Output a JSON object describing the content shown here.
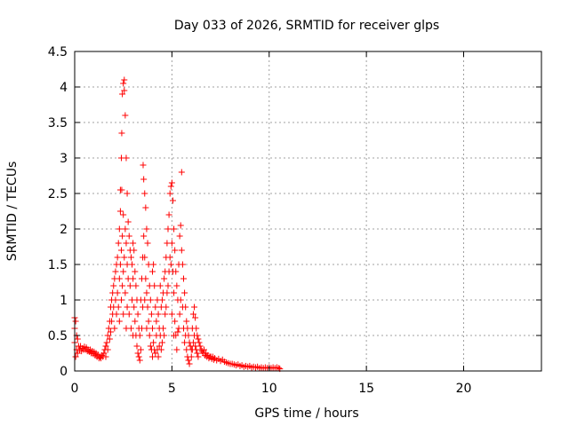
{
  "chart_data": {
    "type": "scatter",
    "title": "Day 033 of 2026, SRMTID for receiver glps",
    "xlabel": "GPS time / hours",
    "ylabel": "SRMTID / TECUs",
    "xlim": [
      0,
      24
    ],
    "ylim": [
      0,
      4.5
    ],
    "grid": true,
    "marker": "+",
    "color": "#ff0000",
    "x_ticks": [
      0,
      5,
      10,
      15,
      20
    ],
    "y_ticks": [
      0,
      0.5,
      1,
      1.5,
      2,
      2.5,
      3,
      3.5,
      4,
      4.5
    ],
    "x_tick_labels": [
      "0",
      "5",
      "10",
      "15",
      "20"
    ],
    "y_tick_labels": [
      "0",
      "0.5",
      "1",
      "1.5",
      "2",
      "2.5",
      "3",
      "3.5",
      "4",
      "4.5"
    ],
    "series": [
      {
        "name": "SRMTID",
        "points": [
          [
            0.0,
            0.75
          ],
          [
            0.0,
            0.6
          ],
          [
            0.0,
            0.4
          ],
          [
            0.05,
            0.7
          ],
          [
            0.05,
            0.2
          ],
          [
            0.1,
            0.5
          ],
          [
            0.1,
            0.3
          ],
          [
            0.15,
            0.45
          ],
          [
            0.15,
            0.25
          ],
          [
            0.2,
            0.35
          ],
          [
            0.25,
            0.3
          ],
          [
            0.3,
            0.35
          ],
          [
            0.35,
            0.28
          ],
          [
            0.4,
            0.32
          ],
          [
            0.45,
            0.3
          ],
          [
            0.5,
            0.34
          ],
          [
            0.55,
            0.3
          ],
          [
            0.6,
            0.33
          ],
          [
            0.65,
            0.28
          ],
          [
            0.7,
            0.3
          ],
          [
            0.75,
            0.27
          ],
          [
            0.8,
            0.3
          ],
          [
            0.85,
            0.25
          ],
          [
            0.9,
            0.28
          ],
          [
            0.95,
            0.24
          ],
          [
            1.0,
            0.27
          ],
          [
            1.05,
            0.22
          ],
          [
            1.1,
            0.25
          ],
          [
            1.15,
            0.2
          ],
          [
            1.2,
            0.23
          ],
          [
            1.25,
            0.18
          ],
          [
            1.3,
            0.2
          ],
          [
            1.35,
            0.18
          ],
          [
            1.4,
            0.22
          ],
          [
            1.45,
            0.2
          ],
          [
            1.5,
            0.25
          ],
          [
            1.55,
            0.3
          ],
          [
            1.6,
            0.35
          ],
          [
            1.6,
            0.2
          ],
          [
            1.65,
            0.4
          ],
          [
            1.7,
            0.5
          ],
          [
            1.7,
            0.3
          ],
          [
            1.75,
            0.6
          ],
          [
            1.8,
            0.7
          ],
          [
            1.8,
            0.45
          ],
          [
            1.85,
            0.9
          ],
          [
            1.85,
            0.55
          ],
          [
            1.9,
            1.0
          ],
          [
            1.9,
            0.7
          ],
          [
            1.95,
            1.1
          ],
          [
            1.95,
            0.8
          ],
          [
            2.0,
            1.2
          ],
          [
            2.0,
            0.9
          ],
          [
            2.05,
            1.3
          ],
          [
            2.05,
            0.6
          ],
          [
            2.1,
            1.4
          ],
          [
            2.1,
            1.0
          ],
          [
            2.15,
            1.5
          ],
          [
            2.15,
            0.8
          ],
          [
            2.2,
            1.6
          ],
          [
            2.2,
            1.1
          ],
          [
            2.25,
            1.8
          ],
          [
            2.25,
            0.9
          ],
          [
            2.3,
            2.0
          ],
          [
            2.3,
            1.3
          ],
          [
            2.3,
            0.7
          ],
          [
            2.35,
            2.25
          ],
          [
            2.35,
            1.5
          ],
          [
            2.35,
            2.55
          ],
          [
            2.4,
            3.0
          ],
          [
            2.4,
            1.7
          ],
          [
            2.4,
            1.0
          ],
          [
            2.42,
            3.35
          ],
          [
            2.42,
            2.55
          ],
          [
            2.45,
            3.9
          ],
          [
            2.45,
            1.9
          ],
          [
            2.45,
            1.2
          ],
          [
            2.5,
            4.05
          ],
          [
            2.5,
            2.2
          ],
          [
            2.5,
            1.4
          ],
          [
            2.5,
            0.8
          ],
          [
            2.55,
            4.1
          ],
          [
            2.55,
            3.95
          ],
          [
            2.55,
            1.6
          ],
          [
            2.6,
            3.6
          ],
          [
            2.6,
            2.0
          ],
          [
            2.6,
            1.1
          ],
          [
            2.65,
            3.0
          ],
          [
            2.65,
            1.8
          ],
          [
            2.65,
            0.6
          ],
          [
            2.7,
            2.5
          ],
          [
            2.7,
            1.5
          ],
          [
            2.7,
            0.9
          ],
          [
            2.75,
            2.1
          ],
          [
            2.75,
            1.3
          ],
          [
            2.8,
            1.9
          ],
          [
            2.8,
            0.8
          ],
          [
            2.85,
            1.7
          ],
          [
            2.85,
            1.2
          ],
          [
            2.9,
            1.6
          ],
          [
            2.9,
            0.6
          ],
          [
            2.95,
            1.5
          ],
          [
            2.95,
            1.0
          ],
          [
            3.0,
            1.8
          ],
          [
            3.0,
            1.3
          ],
          [
            3.0,
            0.5
          ],
          [
            3.05,
            1.7
          ],
          [
            3.05,
            0.9
          ],
          [
            3.1,
            1.4
          ],
          [
            3.1,
            0.7
          ],
          [
            3.15,
            1.2
          ],
          [
            3.15,
            0.5
          ],
          [
            3.2,
            1.0
          ],
          [
            3.2,
            0.35
          ],
          [
            3.25,
            0.8
          ],
          [
            3.25,
            0.25
          ],
          [
            3.3,
            0.6
          ],
          [
            3.3,
            0.2
          ],
          [
            3.35,
            0.5
          ],
          [
            3.35,
            0.15
          ],
          [
            3.4,
            1.0
          ],
          [
            3.4,
            0.3
          ],
          [
            3.45,
            1.3
          ],
          [
            3.45,
            0.6
          ],
          [
            3.5,
            1.6
          ],
          [
            3.5,
            0.9
          ],
          [
            3.52,
            2.9
          ],
          [
            3.55,
            2.7
          ],
          [
            3.55,
            1.9
          ],
          [
            3.6,
            2.5
          ],
          [
            3.6,
            1.6
          ],
          [
            3.6,
            1.0
          ],
          [
            3.65,
            2.3
          ],
          [
            3.65,
            1.3
          ],
          [
            3.7,
            2.0
          ],
          [
            3.7,
            1.1
          ],
          [
            3.7,
            0.6
          ],
          [
            3.75,
            1.8
          ],
          [
            3.75,
            0.9
          ],
          [
            3.8,
            1.5
          ],
          [
            3.8,
            0.7
          ],
          [
            3.85,
            1.2
          ],
          [
            3.85,
            0.5
          ],
          [
            3.9,
            1.0
          ],
          [
            3.9,
            0.35
          ],
          [
            3.95,
            0.8
          ],
          [
            3.95,
            0.3
          ],
          [
            4.0,
            1.4
          ],
          [
            4.0,
            0.6
          ],
          [
            4.0,
            0.2
          ],
          [
            4.05,
            1.5
          ],
          [
            4.05,
            0.4
          ],
          [
            4.1,
            1.2
          ],
          [
            4.1,
            0.3
          ],
          [
            4.15,
            0.9
          ],
          [
            4.15,
            0.25
          ],
          [
            4.2,
            0.7
          ],
          [
            4.2,
            0.5
          ],
          [
            4.25,
            1.0
          ],
          [
            4.25,
            0.3
          ],
          [
            4.3,
            0.8
          ],
          [
            4.3,
            0.2
          ],
          [
            4.35,
            0.6
          ],
          [
            4.35,
            0.35
          ],
          [
            4.4,
            1.2
          ],
          [
            4.4,
            0.5
          ],
          [
            4.45,
            0.9
          ],
          [
            4.45,
            0.3
          ],
          [
            4.5,
            1.0
          ],
          [
            4.5,
            0.4
          ],
          [
            4.55,
            1.1
          ],
          [
            4.55,
            0.6
          ],
          [
            4.6,
            1.3
          ],
          [
            4.6,
            0.5
          ],
          [
            4.65,
            1.4
          ],
          [
            4.65,
            0.8
          ],
          [
            4.7,
            1.6
          ],
          [
            4.7,
            0.9
          ],
          [
            4.75,
            1.8
          ],
          [
            4.75,
            1.1
          ],
          [
            4.8,
            2.0
          ],
          [
            4.8,
            1.2
          ],
          [
            4.85,
            2.2
          ],
          [
            4.85,
            1.4
          ],
          [
            4.9,
            2.5
          ],
          [
            4.9,
            1.6
          ],
          [
            4.95,
            2.6
          ],
          [
            4.95,
            1.5
          ],
          [
            5.0,
            2.65
          ],
          [
            5.0,
            1.8
          ],
          [
            5.0,
            0.8
          ],
          [
            5.05,
            2.4
          ],
          [
            5.05,
            1.4
          ],
          [
            5.1,
            2.0
          ],
          [
            5.1,
            1.1
          ],
          [
            5.1,
            0.5
          ],
          [
            5.15,
            1.7
          ],
          [
            5.15,
            0.7
          ],
          [
            5.2,
            1.4
          ],
          [
            5.2,
            0.5
          ],
          [
            5.25,
            1.2
          ],
          [
            5.25,
            0.3
          ],
          [
            5.3,
            1.0
          ],
          [
            5.3,
            0.55
          ],
          [
            5.35,
            1.5
          ],
          [
            5.35,
            0.6
          ],
          [
            5.4,
            1.9
          ],
          [
            5.4,
            0.8
          ],
          [
            5.45,
            2.05
          ],
          [
            5.45,
            1.0
          ],
          [
            5.5,
            2.8
          ],
          [
            5.5,
            1.7
          ],
          [
            5.55,
            1.5
          ],
          [
            5.55,
            0.9
          ],
          [
            5.6,
            1.3
          ],
          [
            5.6,
            0.6
          ],
          [
            5.65,
            1.1
          ],
          [
            5.65,
            0.4
          ],
          [
            5.7,
            0.9
          ],
          [
            5.7,
            0.5
          ],
          [
            5.75,
            0.7
          ],
          [
            5.75,
            0.3
          ],
          [
            5.8,
            0.6
          ],
          [
            5.8,
            0.2
          ],
          [
            5.85,
            0.5
          ],
          [
            5.85,
            0.15
          ],
          [
            5.9,
            0.4
          ],
          [
            5.9,
            0.1
          ],
          [
            5.95,
            0.35
          ],
          [
            6.0,
            0.3
          ],
          [
            6.0,
            0.2
          ],
          [
            6.05,
            0.6
          ],
          [
            6.05,
            0.3
          ],
          [
            6.1,
            0.8
          ],
          [
            6.1,
            0.4
          ],
          [
            6.15,
            0.9
          ],
          [
            6.15,
            0.5
          ],
          [
            6.2,
            0.75
          ],
          [
            6.2,
            0.35
          ],
          [
            6.25,
            0.6
          ],
          [
            6.25,
            0.3
          ],
          [
            6.3,
            0.5
          ],
          [
            6.3,
            0.25
          ],
          [
            6.35,
            0.45
          ],
          [
            6.35,
            0.2
          ],
          [
            6.4,
            0.4
          ],
          [
            6.45,
            0.35
          ],
          [
            6.5,
            0.3
          ],
          [
            6.55,
            0.28
          ],
          [
            6.6,
            0.25
          ],
          [
            6.65,
            0.3
          ],
          [
            6.7,
            0.22
          ],
          [
            6.75,
            0.25
          ],
          [
            6.8,
            0.2
          ],
          [
            6.85,
            0.22
          ],
          [
            6.9,
            0.18
          ],
          [
            6.95,
            0.2
          ],
          [
            7.0,
            0.2
          ],
          [
            7.05,
            0.17
          ],
          [
            7.1,
            0.2
          ],
          [
            7.15,
            0.16
          ],
          [
            7.2,
            0.18
          ],
          [
            7.3,
            0.15
          ],
          [
            7.4,
            0.17
          ],
          [
            7.5,
            0.14
          ],
          [
            7.6,
            0.16
          ],
          [
            7.7,
            0.13
          ],
          [
            7.8,
            0.12
          ],
          [
            7.9,
            0.11
          ],
          [
            8.0,
            0.1
          ],
          [
            8.1,
            0.1
          ],
          [
            8.2,
            0.09
          ],
          [
            8.3,
            0.08
          ],
          [
            8.4,
            0.09
          ],
          [
            8.5,
            0.07
          ],
          [
            8.6,
            0.08
          ],
          [
            8.7,
            0.06
          ],
          [
            8.8,
            0.07
          ],
          [
            8.9,
            0.06
          ],
          [
            9.0,
            0.07
          ],
          [
            9.1,
            0.05
          ],
          [
            9.2,
            0.06
          ],
          [
            9.3,
            0.05
          ],
          [
            9.4,
            0.06
          ],
          [
            9.5,
            0.04
          ],
          [
            9.6,
            0.05
          ],
          [
            9.7,
            0.04
          ],
          [
            9.8,
            0.05
          ],
          [
            9.9,
            0.04
          ],
          [
            10.0,
            0.05
          ],
          [
            10.1,
            0.04
          ],
          [
            10.2,
            0.05
          ],
          [
            10.3,
            0.04
          ],
          [
            10.4,
            0.05
          ],
          [
            10.5,
            0.04
          ],
          [
            10.55,
            0.03
          ]
        ]
      }
    ]
  }
}
